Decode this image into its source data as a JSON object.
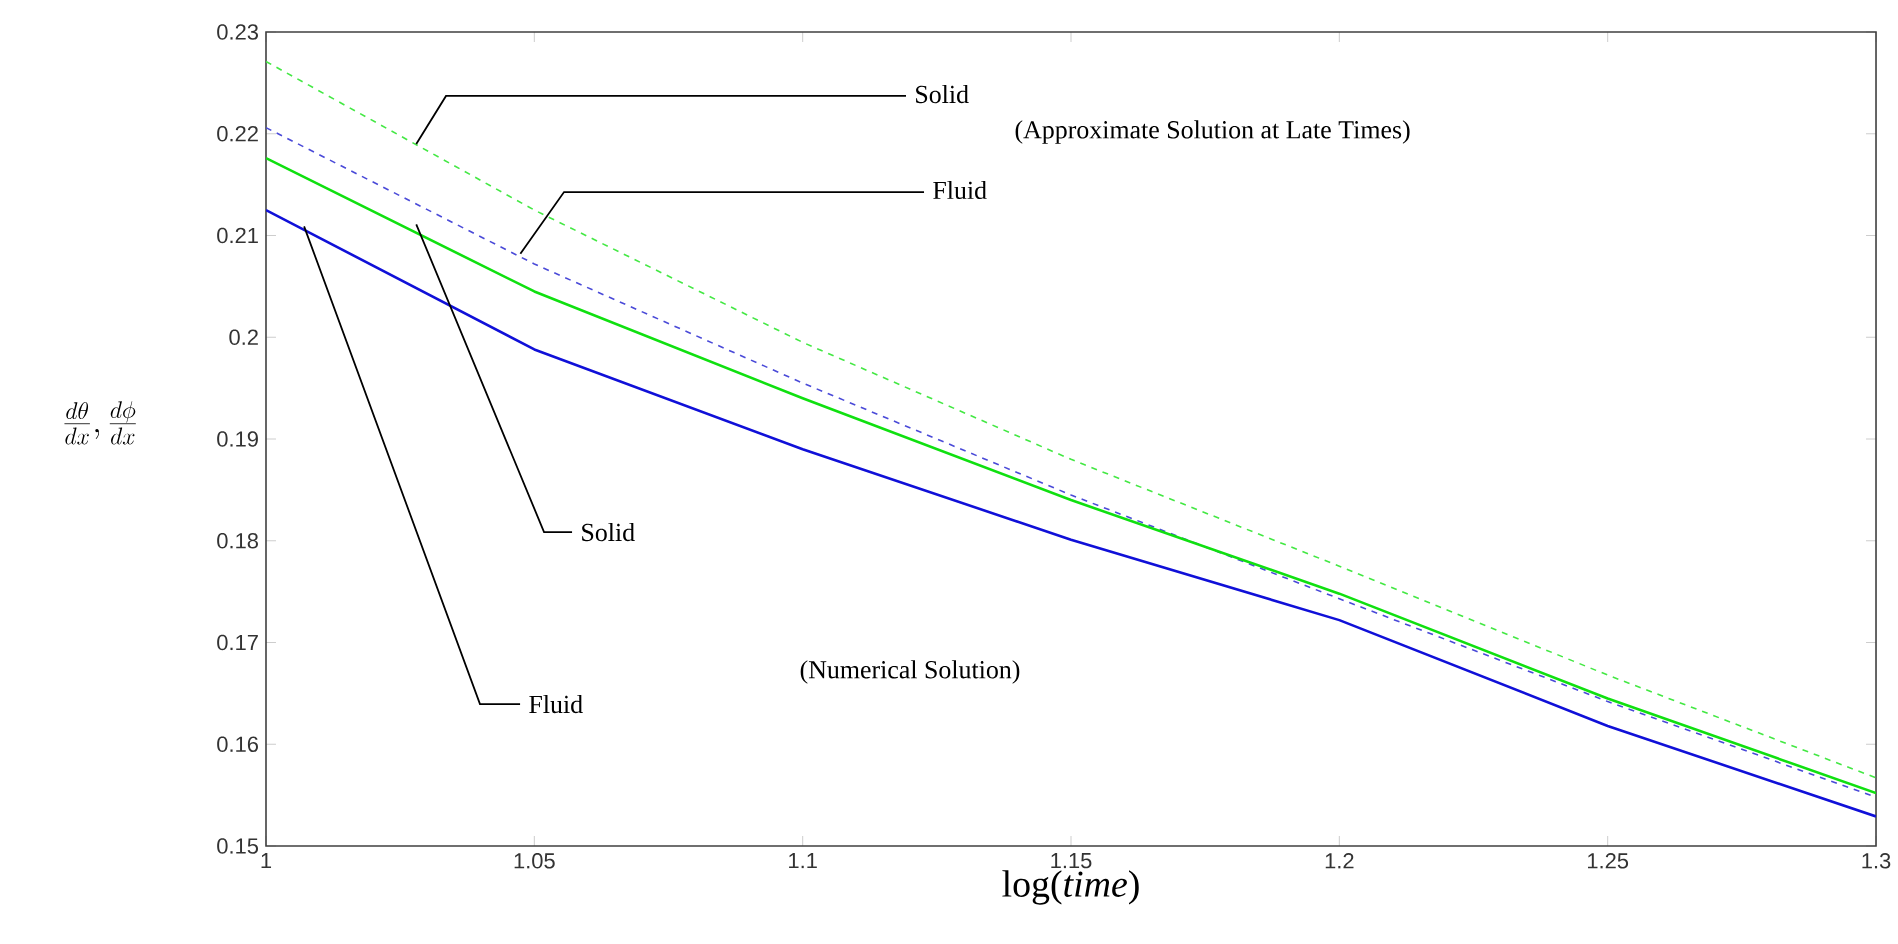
{
  "chart_data": {
    "type": "line",
    "xlabel": "log(*time*)",
    "ylabel": "\\frac{d\\theta}{dx},\\frac{d\\phi}{dx}",
    "x": [
      1,
      1.05,
      1.1,
      1.15,
      1.2,
      1.25,
      1.3
    ],
    "series": [
      {
        "color": "#44e844",
        "line_style": "dashed",
        "values": [
          0.2271,
          0.2125,
          0.1995,
          0.188,
          0.1775,
          0.1668,
          0.1567
        ]
      },
      {
        "color": "#4a4ad8",
        "line_style": "dashed",
        "values": [
          0.2206,
          0.2072,
          0.1955,
          0.1845,
          0.1743,
          0.1642,
          0.1548
        ]
      },
      {
        "color": "#10e010",
        "line_style": "solid",
        "values": [
          0.2176,
          0.2045,
          0.194,
          0.184,
          0.1748,
          0.1645,
          0.1552
        ]
      },
      {
        "color": "#1010d8",
        "line_style": "solid",
        "values": [
          0.2125,
          0.1988,
          0.189,
          0.1801,
          0.1722,
          0.1618,
          0.1529
        ]
      }
    ],
    "xlim": [
      1,
      1.3
    ],
    "ylim": [
      0.15,
      0.23
    ],
    "xticks": [
      1,
      1.05,
      1.1,
      1.15,
      1.2,
      1.25,
      1.3
    ],
    "yticks": [
      0.15,
      0.16,
      0.17,
      0.18,
      0.19,
      0.2,
      0.21,
      0.22,
      0.23
    ],
    "annotations": [
      {
        "text": "Solid",
        "x": 1.028,
        "y": 0.219
      },
      "(Approximate Solution at Late Times)",
      {
        "text": "Fluid",
        "x": 1.0474,
        "y": 0.2082
      },
      {
        "text": "Solid",
        "x": 1.028,
        "y": 0.2111
      },
      {
        "text": "Fluid",
        "x": 1.0071,
        "y": 0.2109
      },
      "(Numerical Solution)"
    ]
  }
}
